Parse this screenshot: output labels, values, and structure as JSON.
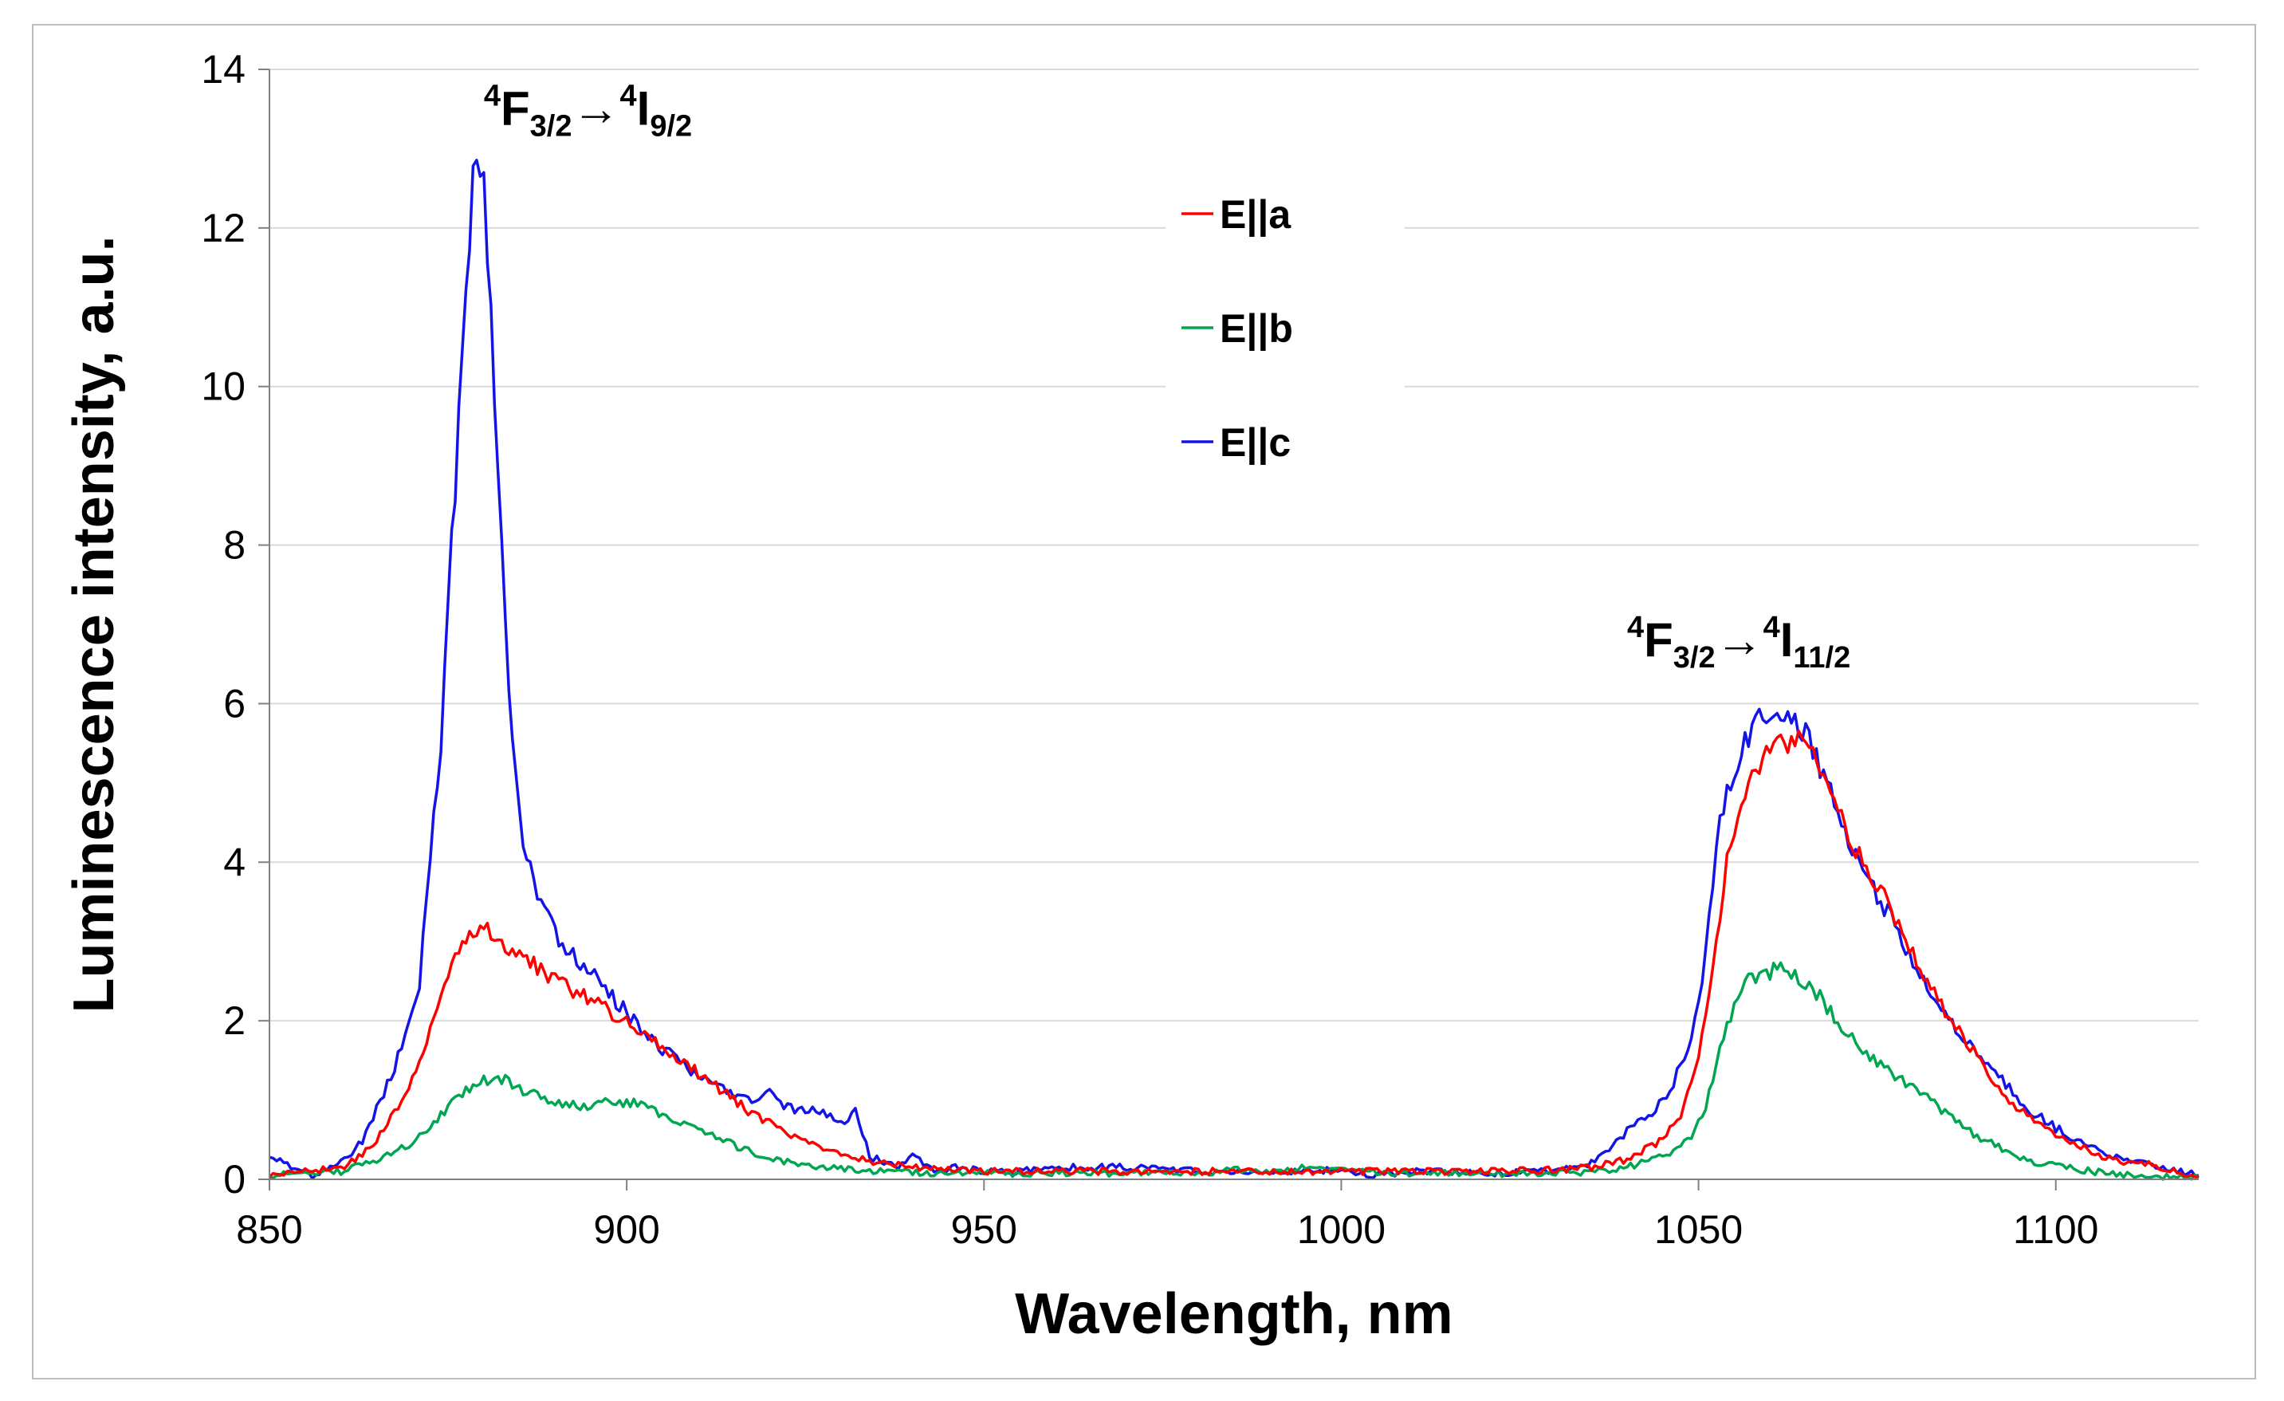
{
  "chart_data": {
    "type": "line",
    "xlabel": "Wavelength, nm",
    "ylabel": "Luminescence intensity, a.u.",
    "xlim": [
      850,
      1120
    ],
    "ylim": [
      0,
      14
    ],
    "xticks": [
      850,
      900,
      950,
      1000,
      1050,
      1100
    ],
    "yticks": [
      0,
      2,
      4,
      6,
      8,
      10,
      12,
      14
    ],
    "grid": "horizontal",
    "legend_position": "top-center",
    "annotations": [
      {
        "id": "annot-94",
        "x": 880,
        "y": 13.3,
        "parts": [
          {
            "text": "4",
            "role": "sup"
          },
          {
            "text": "F",
            "role": "base"
          },
          {
            "text": "3/2",
            "role": "sub"
          },
          {
            "text": "→",
            "role": "base"
          },
          {
            "text": "4",
            "role": "sup"
          },
          {
            "text": "I",
            "role": "base"
          },
          {
            "text": "9/2",
            "role": "sub"
          }
        ]
      },
      {
        "id": "annot-1112",
        "x": 1040,
        "y": 6.6,
        "parts": [
          {
            "text": "4",
            "role": "sup"
          },
          {
            "text": "F",
            "role": "base"
          },
          {
            "text": "3/2",
            "role": "sub"
          },
          {
            "text": "→",
            "role": "base"
          },
          {
            "text": "4",
            "role": "sup"
          },
          {
            "text": "I",
            "role": "base"
          },
          {
            "text": "11/2",
            "role": "sub"
          }
        ]
      }
    ],
    "series": [
      {
        "name": "E||a",
        "color": "#ff0000",
        "x": [
          850,
          855,
          860,
          863,
          866,
          869,
          872,
          874,
          876,
          878,
          880,
          882,
          885,
          888,
          891,
          894,
          897,
          900,
          903,
          906,
          909,
          912,
          915,
          918,
          921,
          924,
          927,
          930,
          935,
          940,
          945,
          950,
          960,
          970,
          980,
          990,
          1000,
          1010,
          1020,
          1030,
          1035,
          1040,
          1045,
          1048,
          1050,
          1052,
          1054,
          1056,
          1058,
          1060,
          1062,
          1064,
          1066,
          1068,
          1070,
          1072,
          1075,
          1078,
          1081,
          1084,
          1087,
          1090,
          1093,
          1096,
          1099,
          1102,
          1105,
          1108,
          1111,
          1114,
          1117,
          1120
        ],
        "y": [
          0.05,
          0.1,
          0.15,
          0.3,
          0.6,
          1.1,
          1.7,
          2.3,
          2.8,
          3.1,
          3.2,
          3.0,
          2.8,
          2.65,
          2.45,
          2.3,
          2.15,
          2.0,
          1.8,
          1.6,
          1.4,
          1.2,
          1.0,
          0.8,
          0.65,
          0.5,
          0.4,
          0.3,
          0.22,
          0.15,
          0.12,
          0.1,
          0.1,
          0.1,
          0.1,
          0.1,
          0.1,
          0.1,
          0.1,
          0.12,
          0.15,
          0.25,
          0.5,
          0.9,
          1.5,
          2.6,
          4.0,
          4.8,
          5.2,
          5.4,
          5.5,
          5.6,
          5.3,
          5.0,
          4.6,
          4.2,
          3.7,
          3.2,
          2.7,
          2.2,
          1.8,
          1.4,
          1.05,
          0.8,
          0.6,
          0.45,
          0.35,
          0.25,
          0.2,
          0.18,
          0.08,
          0.03
        ]
      },
      {
        "name": "E||b",
        "color": "#00a651",
        "x": [
          850,
          855,
          860,
          864,
          868,
          872,
          875,
          878,
          880,
          883,
          886,
          889,
          892,
          895,
          898,
          901,
          904,
          907,
          910,
          913,
          916,
          919,
          922,
          925,
          928,
          932,
          936,
          940,
          945,
          950,
          960,
          970,
          980,
          985,
          990,
          995,
          1000,
          1010,
          1020,
          1030,
          1035,
          1040,
          1043,
          1046,
          1049,
          1051,
          1053,
          1055,
          1057,
          1059,
          1061,
          1063,
          1065,
          1067,
          1069,
          1071,
          1074,
          1077,
          1080,
          1083,
          1086,
          1089,
          1092,
          1095,
          1098,
          1101,
          1105,
          1110,
          1115,
          1120
        ],
        "y": [
          0.05,
          0.08,
          0.1,
          0.2,
          0.35,
          0.6,
          0.9,
          1.15,
          1.25,
          1.25,
          1.1,
          1.0,
          0.95,
          0.9,
          1.0,
          0.95,
          0.85,
          0.75,
          0.6,
          0.5,
          0.4,
          0.3,
          0.22,
          0.18,
          0.15,
          0.12,
          0.1,
          0.08,
          0.07,
          0.07,
          0.08,
          0.07,
          0.08,
          0.12,
          0.1,
          0.15,
          0.1,
          0.08,
          0.07,
          0.07,
          0.1,
          0.15,
          0.25,
          0.35,
          0.5,
          0.9,
          1.6,
          2.2,
          2.5,
          2.6,
          2.65,
          2.6,
          2.5,
          2.3,
          2.05,
          1.8,
          1.55,
          1.35,
          1.15,
          0.95,
          0.75,
          0.55,
          0.4,
          0.28,
          0.2,
          0.15,
          0.1,
          0.06,
          0.03,
          0.02
        ]
      },
      {
        "name": "E||c",
        "color": "#1414e6",
        "x": [
          850,
          853,
          856,
          860,
          863,
          865,
          867,
          869,
          871,
          872,
          874,
          875,
          876,
          877,
          878,
          879,
          880,
          881,
          882,
          883,
          884,
          885,
          886,
          888,
          890,
          892,
          894,
          896,
          898,
          900,
          902,
          904,
          906,
          908,
          910,
          912,
          914,
          916,
          918,
          920,
          922,
          924,
          926,
          928,
          930,
          932,
          934,
          936,
          938,
          940,
          942,
          944,
          946,
          950,
          955,
          960,
          970,
          980,
          990,
          1000,
          1005,
          1010,
          1020,
          1030,
          1035,
          1038,
          1040,
          1043,
          1046,
          1049,
          1051,
          1053,
          1055,
          1057,
          1059,
          1061,
          1063,
          1065,
          1067,
          1069,
          1071,
          1073,
          1075,
          1078,
          1081,
          1084,
          1087,
          1090,
          1093,
          1096,
          1099,
          1102,
          1105,
          1108,
          1111,
          1114,
          1117,
          1120
        ],
        "y": [
          0.3,
          0.15,
          0.05,
          0.2,
          0.5,
          0.9,
          1.3,
          1.8,
          2.5,
          3.6,
          5.5,
          7.2,
          8.8,
          10.5,
          12.0,
          12.9,
          12.5,
          11.0,
          9.0,
          7.0,
          5.5,
          4.6,
          4.0,
          3.5,
          3.1,
          2.9,
          2.7,
          2.5,
          2.3,
          2.1,
          1.9,
          1.7,
          1.6,
          1.45,
          1.3,
          1.2,
          1.1,
          1.05,
          1.0,
          1.1,
          0.95,
          0.85,
          0.9,
          0.8,
          0.7,
          0.85,
          0.3,
          0.2,
          0.15,
          0.3,
          0.15,
          0.1,
          0.15,
          0.1,
          0.1,
          0.15,
          0.15,
          0.1,
          0.1,
          0.12,
          0.05,
          0.1,
          0.08,
          0.1,
          0.2,
          0.4,
          0.6,
          0.8,
          1.1,
          1.8,
          2.8,
          4.6,
          5.2,
          5.6,
          5.8,
          5.9,
          5.8,
          5.65,
          5.2,
          4.8,
          4.3,
          3.9,
          3.6,
          3.1,
          2.6,
          2.2,
          1.8,
          1.5,
          1.2,
          0.9,
          0.7,
          0.55,
          0.4,
          0.3,
          0.22,
          0.18,
          0.1,
          0.05
        ]
      }
    ]
  }
}
